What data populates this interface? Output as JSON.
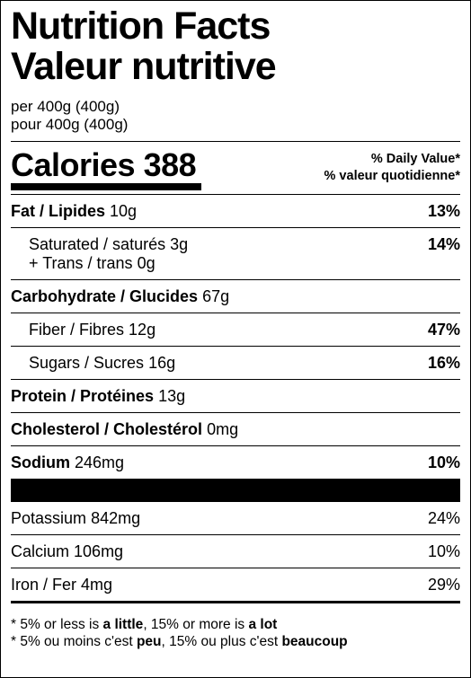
{
  "title": [
    "Nutrition Facts",
    "Valeur nutritive"
  ],
  "serving": [
    "per 400g (400g)",
    "pour 400g (400g)"
  ],
  "calories": {
    "label": "Calories",
    "value": "388"
  },
  "dv_header": [
    "% Daily Value*",
    "% valeur quotidienne*"
  ],
  "nutrients": [
    {
      "name": "Fat / Lipides",
      "amount": "10g",
      "dv": "13%",
      "sub": [
        {
          "name": "Saturated / saturés",
          "amount": "3g",
          "dv": "14%",
          "trans": {
            "name": "+ Trans / trans",
            "amount": "0g"
          }
        }
      ]
    },
    {
      "name": "Carbohydrate / Glucides",
      "amount": "67g",
      "sub": [
        {
          "name": "Fiber / Fibres",
          "amount": "12g",
          "dv": "47%"
        },
        {
          "name": "Sugars / Sucres",
          "amount": "16g",
          "dv": "16%"
        }
      ]
    },
    {
      "name": "Protein / Protéines",
      "amount": "13g"
    },
    {
      "name": "Cholesterol / Cholestérol",
      "amount": "0mg"
    },
    {
      "name": "Sodium",
      "amount": "246mg",
      "dv": "10%"
    }
  ],
  "minerals": [
    {
      "name": "Potassium",
      "amount": "842mg",
      "dv": "24%"
    },
    {
      "name": "Calcium",
      "amount": "106mg",
      "dv": "10%"
    },
    {
      "name": "Iron / Fer",
      "amount": "4mg",
      "dv": "29%"
    }
  ],
  "footnote": [
    [
      "* 5% or less is ",
      "a little",
      ", 15% or more is ",
      "a lot"
    ],
    [
      "* 5% ou moins c'est ",
      "peu",
      ", 15% ou plus c'est ",
      "beaucoup"
    ]
  ]
}
